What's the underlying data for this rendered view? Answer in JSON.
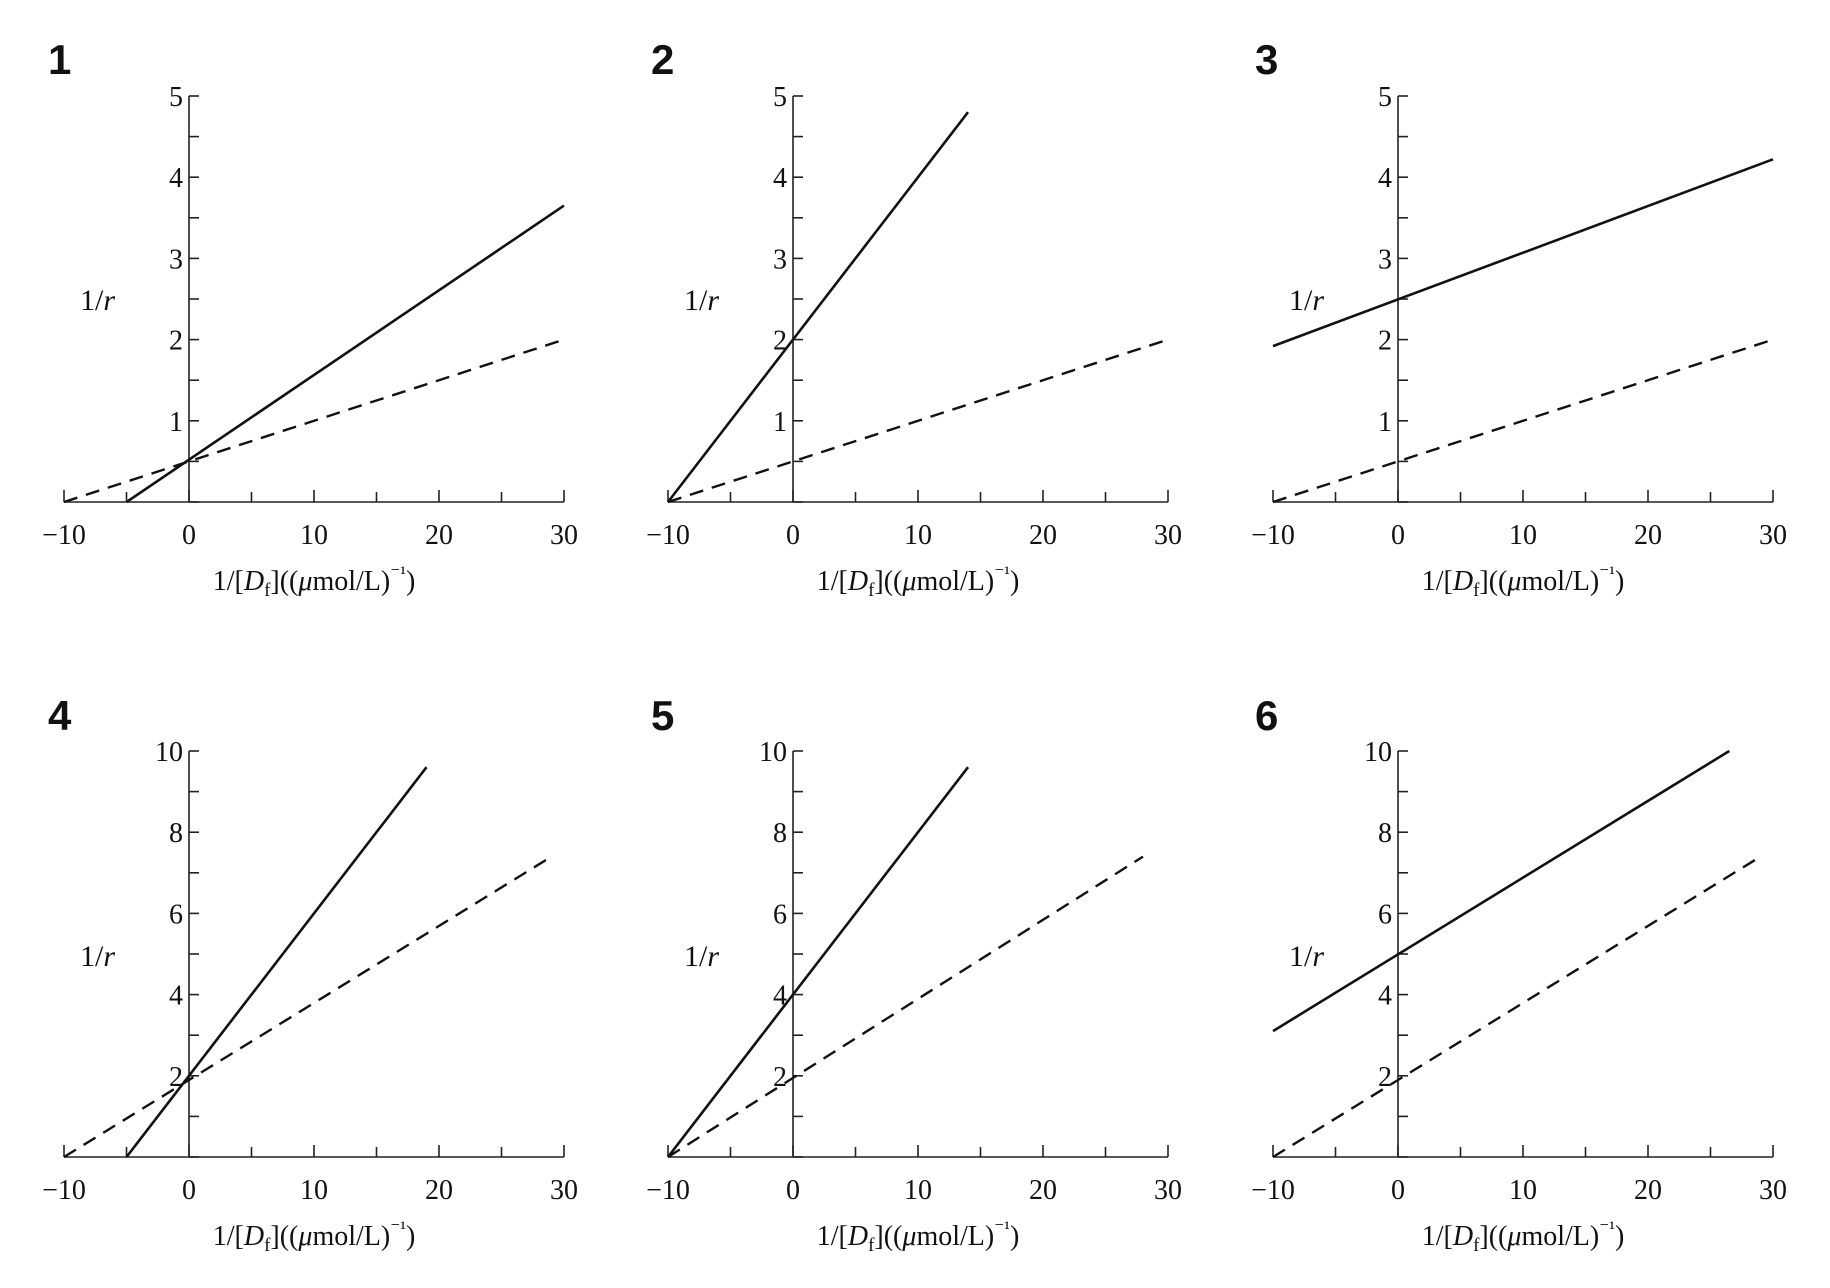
{
  "chart_data": [
    {
      "panel": "1",
      "type": "line",
      "xlabel": "1/[Df]((μmol/L)⁻¹)",
      "ylabel": "1/r",
      "xlim": [
        -10,
        30
      ],
      "ylim": [
        0,
        5
      ],
      "xticks": [
        "−10",
        "0",
        "10",
        "20",
        "30"
      ],
      "yticks": [
        "1",
        "2",
        "3",
        "4",
        "5"
      ],
      "series": [
        {
          "style": "solid",
          "x": [
            -5,
            30
          ],
          "y": [
            0,
            3.65
          ]
        },
        {
          "style": "dashed",
          "x": [
            -10,
            30
          ],
          "y": [
            0,
            2
          ]
        }
      ]
    },
    {
      "panel": "2",
      "type": "line",
      "xlabel": "1/[Df]((μmol/L)⁻¹)",
      "ylabel": "1/r",
      "xlim": [
        -10,
        30
      ],
      "ylim": [
        0,
        5
      ],
      "xticks": [
        "−10",
        "0",
        "10",
        "20",
        "30"
      ],
      "yticks": [
        "1",
        "2",
        "3",
        "4",
        "5"
      ],
      "series": [
        {
          "style": "solid",
          "x": [
            -10,
            14
          ],
          "y": [
            0,
            4.8
          ]
        },
        {
          "style": "dashed",
          "x": [
            -10,
            30
          ],
          "y": [
            0,
            2
          ]
        }
      ]
    },
    {
      "panel": "3",
      "type": "line",
      "xlabel": "1/[Df]((μmol/L)⁻¹)",
      "ylabel": "1/r",
      "xlim": [
        -10,
        30
      ],
      "ylim": [
        0,
        5
      ],
      "xticks": [
        "−10",
        "0",
        "10",
        "20",
        "30"
      ],
      "yticks": [
        "1",
        "2",
        "3",
        "4",
        "5"
      ],
      "series": [
        {
          "style": "solid",
          "x": [
            -10,
            30
          ],
          "y": [
            1.92,
            4.22
          ]
        },
        {
          "style": "dashed",
          "x": [
            -10,
            30
          ],
          "y": [
            0,
            2
          ]
        }
      ]
    },
    {
      "panel": "4",
      "type": "line",
      "xlabel": "1/[Df]((μmol/L)⁻¹)",
      "ylabel": "1/r",
      "xlim": [
        -10,
        30
      ],
      "ylim": [
        0,
        10
      ],
      "xticks": [
        "−10",
        "0",
        "10",
        "20",
        "30"
      ],
      "yticks": [
        "2",
        "4",
        "6",
        "8",
        "10"
      ],
      "series": [
        {
          "style": "solid",
          "x": [
            -5,
            19
          ],
          "y": [
            0,
            9.6
          ]
        },
        {
          "style": "dashed",
          "x": [
            -10,
            29
          ],
          "y": [
            0,
            7.4
          ]
        }
      ]
    },
    {
      "panel": "5",
      "type": "line",
      "xlabel": "1/[Df]((μmol/L)⁻¹)",
      "ylabel": "1/r",
      "xlim": [
        -10,
        30
      ],
      "ylim": [
        0,
        10
      ],
      "xticks": [
        "−10",
        "0",
        "10",
        "20",
        "30"
      ],
      "yticks": [
        "2",
        "4",
        "6",
        "8",
        "10"
      ],
      "series": [
        {
          "style": "solid",
          "x": [
            -10,
            14
          ],
          "y": [
            0,
            9.6
          ]
        },
        {
          "style": "dashed",
          "x": [
            -10,
            28
          ],
          "y": [
            0,
            7.4
          ]
        }
      ]
    },
    {
      "panel": "6",
      "type": "line",
      "xlabel": "1/[Df]((μmol/L)⁻¹)",
      "ylabel": "1/r",
      "xlim": [
        -10,
        30
      ],
      "ylim": [
        0,
        10
      ],
      "xticks": [
        "−10",
        "0",
        "10",
        "20",
        "30"
      ],
      "yticks": [
        "2",
        "4",
        "6",
        "8",
        "10"
      ],
      "series": [
        {
          "style": "solid",
          "x": [
            -10,
            26.5
          ],
          "y": [
            3.1,
            10
          ]
        },
        {
          "style": "dashed",
          "x": [
            -10,
            29
          ],
          "y": [
            0,
            7.4
          ]
        }
      ]
    }
  ]
}
